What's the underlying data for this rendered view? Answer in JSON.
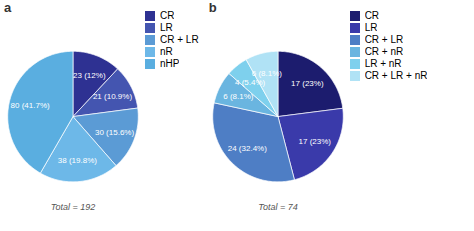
{
  "chart_data": [
    {
      "type": "pie",
      "title": "a",
      "categories": [
        "CR",
        "LR",
        "CR + LR",
        "nR",
        "nHP"
      ],
      "values": [
        23,
        21,
        30,
        38,
        80
      ],
      "value_labels": [
        "23 (12%)",
        "21 (10.9%)",
        "30 (15.6%)",
        "38 (19.8%)",
        "80 (41.7%)"
      ],
      "colors": [
        "#2e3192",
        "#4455b0",
        "#5b9bd5",
        "#6db8e8",
        "#5aaee0"
      ],
      "data_labels": true,
      "legend": "right",
      "annotations": [
        "Total = 192"
      ]
    },
    {
      "type": "pie",
      "title": "b",
      "categories": [
        "CR",
        "LR",
        "CR + LR",
        "CR + nR",
        "LR + nR",
        "CR + LR + nR"
      ],
      "values": [
        17,
        17,
        24,
        6,
        4,
        6
      ],
      "value_labels": [
        "17 (23%)",
        "17 (23%)",
        "24 (32.4%)",
        "6 (8.1%)",
        "4 (5.4%)",
        "6 (8.1%)"
      ],
      "colors": [
        "#1c1c6e",
        "#3a3aaa",
        "#4e7ec5",
        "#6ab5e0",
        "#7ed0ed",
        "#b0e2f5"
      ],
      "data_labels": true,
      "legend": "right",
      "annotations": [
        "Total = 74"
      ]
    }
  ]
}
